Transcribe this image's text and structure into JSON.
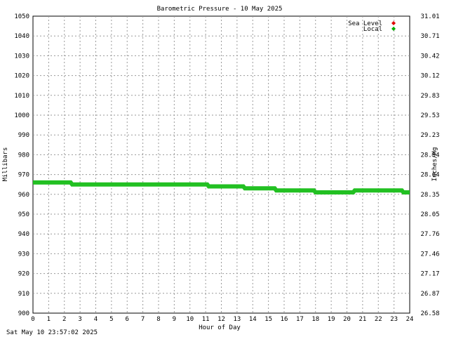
{
  "chart_data": {
    "type": "line",
    "title": "Barometric Pressure - 10 May 2025",
    "xlabel": "Hour of Day",
    "ylabel_left": "Millibars",
    "ylabel_right": "Inches/Hg",
    "xlim": [
      0,
      24
    ],
    "ylim": [
      900,
      1050
    ],
    "x_ticks": [
      "0",
      "1",
      "2",
      "3",
      "4",
      "5",
      "6",
      "7",
      "8",
      "9",
      "10",
      "11",
      "12",
      "13",
      "14",
      "15",
      "16",
      "17",
      "18",
      "19",
      "20",
      "21",
      "22",
      "23",
      "24"
    ],
    "y_ticks_left": [
      "900",
      "910",
      "920",
      "930",
      "940",
      "950",
      "960",
      "970",
      "980",
      "990",
      "1000",
      "1010",
      "1020",
      "1030",
      "1040",
      "1050"
    ],
    "y_ticks_right": [
      "26.58",
      "26.87",
      "27.17",
      "27.46",
      "27.76",
      "28.05",
      "28.35",
      "28.64",
      "28.94",
      "29.23",
      "29.53",
      "29.83",
      "30.12",
      "30.42",
      "30.71",
      "31.01"
    ],
    "grid": true,
    "legend_position": "top-right",
    "legend": [
      {
        "name": "Sea Level",
        "color": "#e00000"
      },
      {
        "name": "Local",
        "color": "#00b000"
      }
    ],
    "series": [
      {
        "name": "Local",
        "color": "#22c022",
        "points": [
          [
            0,
            966
          ],
          [
            2.4,
            966
          ],
          [
            2.5,
            965
          ],
          [
            11.1,
            965
          ],
          [
            11.2,
            964
          ],
          [
            13.4,
            964
          ],
          [
            13.5,
            963
          ],
          [
            15.4,
            963
          ],
          [
            15.5,
            962
          ],
          [
            17.9,
            962
          ],
          [
            18.0,
            961
          ],
          [
            20.4,
            961
          ],
          [
            20.5,
            962
          ],
          [
            23.5,
            962
          ],
          [
            23.6,
            961
          ],
          [
            24,
            961
          ]
        ]
      }
    ]
  },
  "footer": {
    "timestamp": "Sat May 10 23:57:02 2025"
  }
}
